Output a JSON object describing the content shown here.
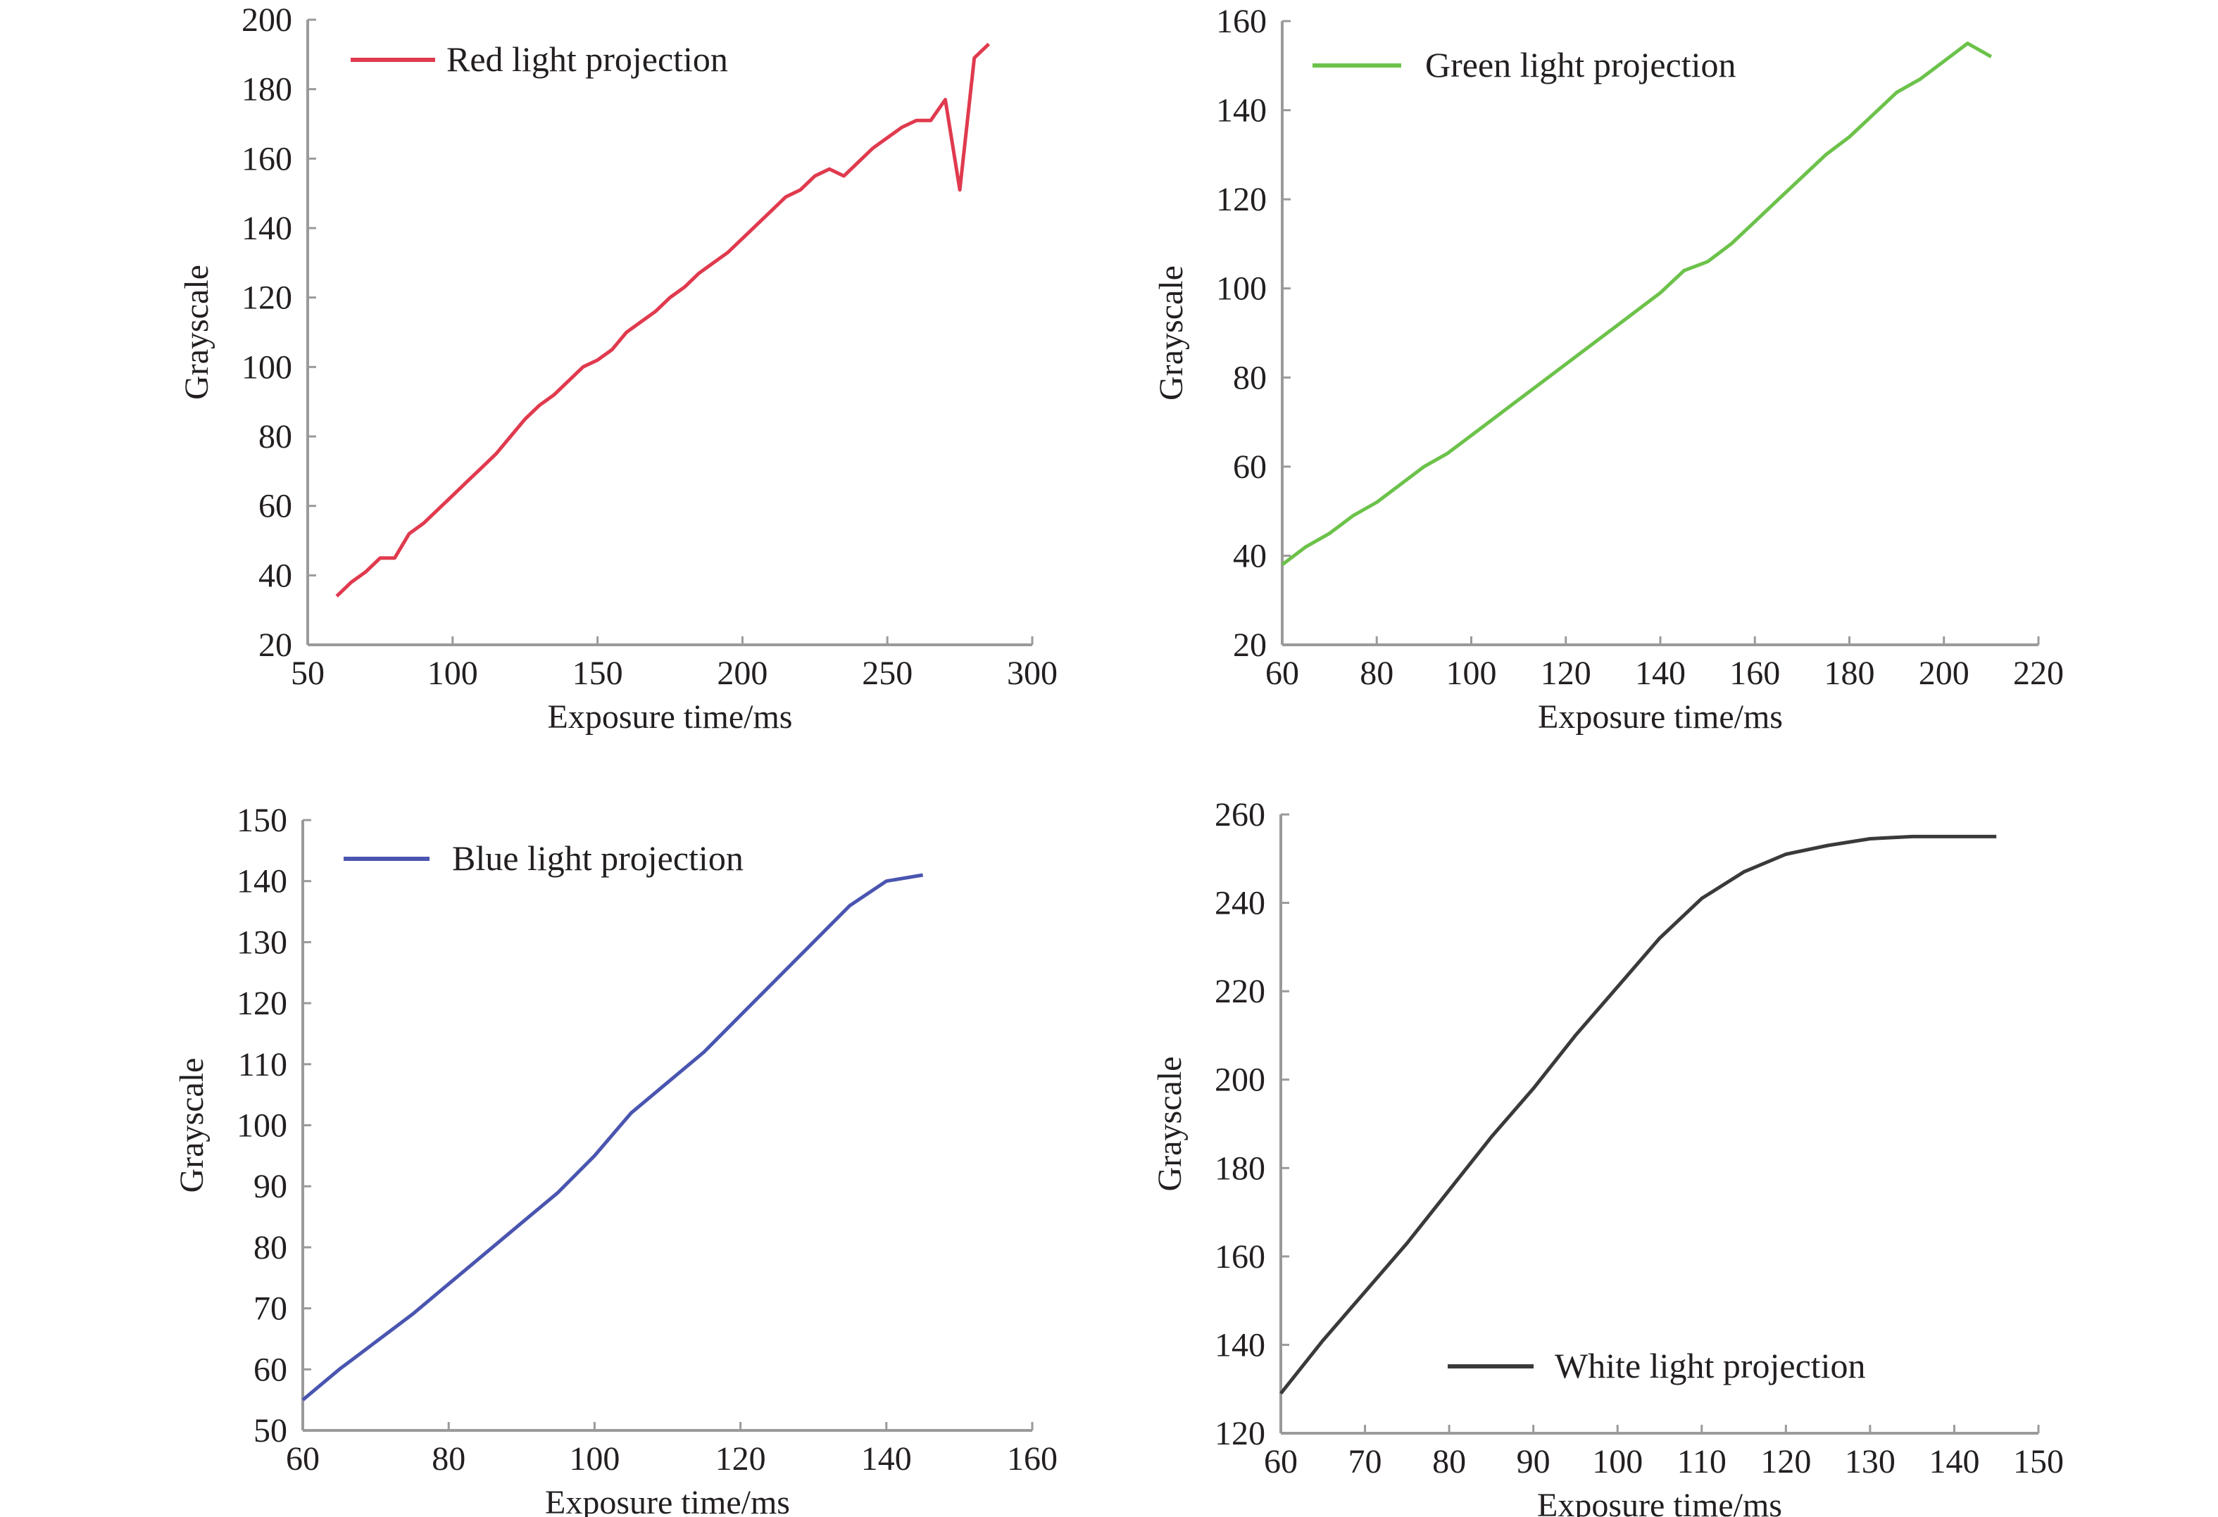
{
  "chart_data": [
    {
      "type": "line",
      "xlabel": "Exposure time/ms",
      "ylabel": "Grayscale",
      "xlim": [
        50,
        300
      ],
      "ylim": [
        20,
        200
      ],
      "xticks": [
        50,
        100,
        150,
        200,
        250,
        300
      ],
      "yticks": [
        20,
        40,
        60,
        80,
        100,
        120,
        140,
        160,
        180,
        200
      ],
      "grid": false,
      "legend_position": "top-left",
      "series": [
        {
          "name": "Red light projection",
          "color": "#e03a4e",
          "x": [
            60,
            65,
            70,
            75,
            80,
            85,
            90,
            95,
            100,
            105,
            110,
            115,
            120,
            125,
            130,
            135,
            140,
            145,
            150,
            155,
            160,
            165,
            170,
            175,
            180,
            185,
            190,
            195,
            200,
            205,
            210,
            215,
            220,
            225,
            230,
            235,
            240,
            245,
            250,
            255,
            260,
            265,
            270,
            275,
            280,
            285
          ],
          "y": [
            34,
            38,
            41,
            45,
            45,
            52,
            55,
            59,
            63,
            67,
            71,
            75,
            80,
            85,
            89,
            92,
            96,
            100,
            102,
            105,
            110,
            113,
            116,
            120,
            123,
            127,
            130,
            133,
            137,
            141,
            145,
            149,
            151,
            155,
            157,
            155,
            159,
            163,
            166,
            169,
            171,
            171,
            177,
            151,
            189,
            193
          ]
        }
      ]
    },
    {
      "type": "line",
      "xlabel": "Exposure time/ms",
      "ylabel": "Grayscale",
      "xlim": [
        60,
        220
      ],
      "ylim": [
        20,
        160
      ],
      "xticks": [
        60,
        80,
        100,
        120,
        140,
        160,
        180,
        200,
        220
      ],
      "yticks": [
        20,
        40,
        60,
        80,
        100,
        120,
        140,
        160
      ],
      "grid": false,
      "legend_position": "top-left",
      "series": [
        {
          "name": "Green light projection",
          "color": "#6cc24a",
          "x": [
            60,
            65,
            70,
            75,
            80,
            85,
            90,
            95,
            100,
            105,
            110,
            115,
            120,
            125,
            130,
            135,
            140,
            145,
            150,
            155,
            160,
            165,
            170,
            175,
            180,
            185,
            190,
            195,
            200,
            205,
            210
          ],
          "y": [
            38,
            42,
            45,
            49,
            52,
            56,
            60,
            63,
            67,
            71,
            75,
            79,
            83,
            87,
            91,
            95,
            99,
            104,
            106,
            110,
            115,
            120,
            125,
            130,
            134,
            139,
            144,
            147,
            151,
            155,
            152
          ]
        }
      ]
    },
    {
      "type": "line",
      "xlabel": "Exposure time/ms",
      "ylabel": "Grayscale",
      "xlim": [
        60,
        160
      ],
      "ylim": [
        50,
        150
      ],
      "xticks": [
        60,
        80,
        100,
        120,
        140,
        160
      ],
      "yticks": [
        50,
        60,
        70,
        80,
        90,
        100,
        110,
        120,
        130,
        140,
        150
      ],
      "grid": false,
      "legend_position": "top-left",
      "series": [
        {
          "name": "Blue light projection",
          "color": "#4a55b0",
          "x": [
            60,
            65,
            70,
            75,
            80,
            85,
            90,
            95,
            100,
            105,
            110,
            115,
            120,
            125,
            130,
            135,
            140,
            145
          ],
          "y": [
            55,
            60,
            64.5,
            69,
            74,
            79,
            84,
            89,
            95,
            102,
            107,
            112,
            118,
            124,
            130,
            136,
            140,
            141
          ]
        }
      ]
    },
    {
      "type": "line",
      "xlabel": "Exposure time/ms",
      "ylabel": "Grayscale",
      "xlim": [
        60,
        150
      ],
      "ylim": [
        120,
        260
      ],
      "xticks": [
        60,
        70,
        80,
        90,
        100,
        110,
        120,
        130,
        140,
        150
      ],
      "yticks": [
        120,
        140,
        160,
        180,
        200,
        220,
        240,
        260
      ],
      "grid": false,
      "legend_position": "bottom-center",
      "series": [
        {
          "name": "White light projection",
          "color": "#3a3a3a",
          "x": [
            60,
            65,
            70,
            75,
            80,
            85,
            90,
            95,
            100,
            105,
            110,
            115,
            120,
            125,
            130,
            135,
            140,
            145
          ],
          "y": [
            129,
            141,
            152,
            163,
            175,
            187,
            198,
            210,
            221,
            232,
            241,
            247,
            251,
            253,
            254.5,
            255,
            255,
            255
          ]
        }
      ]
    }
  ]
}
